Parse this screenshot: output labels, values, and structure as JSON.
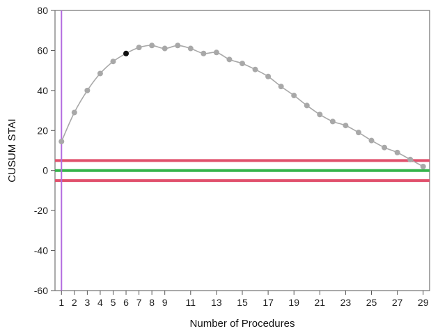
{
  "chart_data": {
    "type": "line",
    "title": "",
    "xlabel": "Number of Procedures",
    "ylabel": "CUSUM STAI",
    "xlim": [
      0.5,
      29.5
    ],
    "ylim": [
      -60,
      80
    ],
    "x_ticks": [
      1,
      2,
      3,
      4,
      5,
      6,
      7,
      8,
      9,
      11,
      13,
      15,
      17,
      19,
      21,
      23,
      25,
      27,
      29
    ],
    "y_ticks": [
      -60,
      -40,
      -20,
      0,
      20,
      40,
      60,
      80
    ],
    "grid": false,
    "series": [
      {
        "color": "#a8a8a8",
        "x": [
          1,
          2,
          3,
          4,
          5,
          6,
          7,
          8,
          9,
          10,
          11,
          12,
          13,
          14,
          15,
          16,
          17,
          18,
          19,
          20,
          21,
          22,
          23,
          24,
          25,
          26,
          27,
          28,
          29
        ],
        "y": [
          14.5,
          29,
          40,
          48.5,
          54.5,
          58.5,
          61.5,
          62.5,
          61,
          62.5,
          61,
          58.5,
          59,
          55.5,
          53.5,
          50.5,
          47,
          42,
          37.5,
          32.5,
          28,
          24.5,
          22.5,
          19,
          15,
          11.5,
          9,
          5.5,
          2
        ]
      }
    ],
    "highlight_point": {
      "x": 6,
      "y": 58.5,
      "color": "#111111"
    },
    "reference_lines": [
      {
        "orientation": "horizontal",
        "value": 5,
        "color": "#e0506c"
      },
      {
        "orientation": "horizontal",
        "value": 0,
        "color": "#34b34a"
      },
      {
        "orientation": "horizontal",
        "value": -5,
        "color": "#e0506c"
      },
      {
        "orientation": "vertical",
        "value": 1,
        "color": "#b36be0"
      }
    ]
  }
}
